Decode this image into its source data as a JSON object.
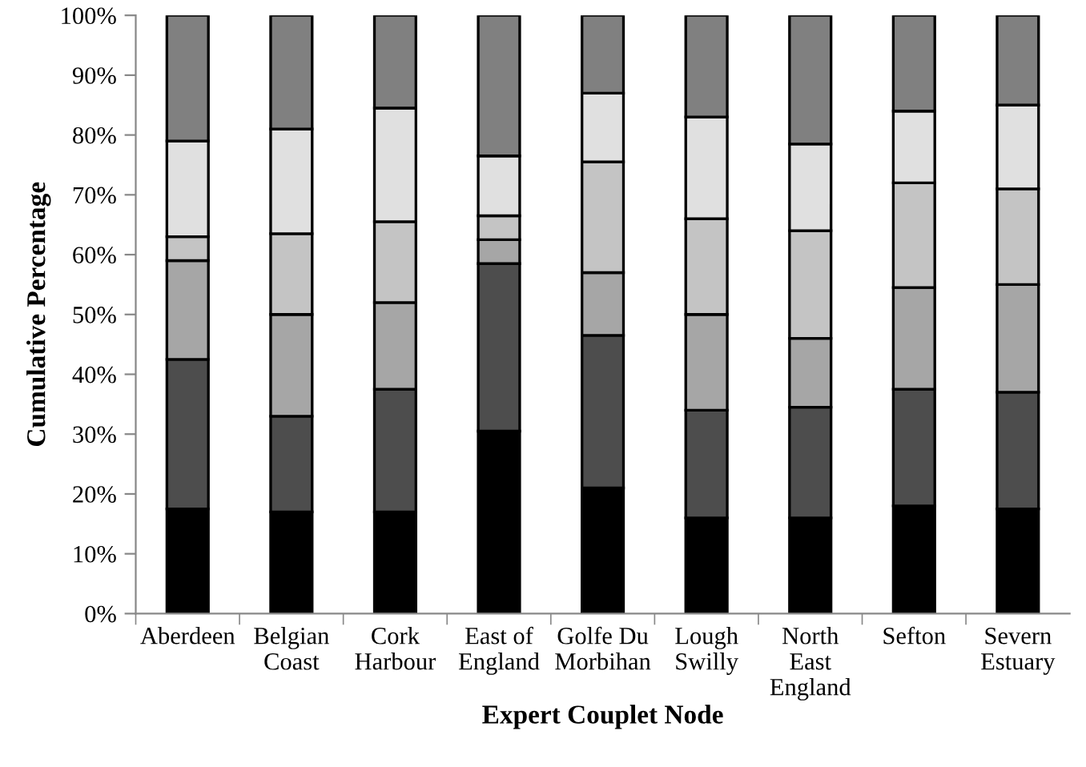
{
  "chart_data": {
    "type": "bar",
    "stacked": true,
    "xlabel": "Expert Couplet Node",
    "ylabel": "Cumulative Percentage",
    "categories": [
      "Aberdeen",
      "Belgian\nCoast",
      "Cork\nHarbour",
      "East of\nEngland",
      "Golfe Du\nMorbihan",
      "Lough\nSwilly",
      "North\nEast\nEngland",
      "Sefton",
      "Severn\nEstuary"
    ],
    "series": [
      {
        "color": "#000000",
        "values": [
          17.5,
          17,
          17,
          30.5,
          21,
          16,
          16,
          18,
          17.5
        ]
      },
      {
        "color": "#4d4d4d",
        "values": [
          25,
          16,
          20.5,
          28,
          25.5,
          18,
          18.5,
          19.5,
          19.5
        ]
      },
      {
        "color": "#a6a6a6",
        "values": [
          16.5,
          17,
          14.5,
          4,
          10.5,
          16,
          11.5,
          17,
          18
        ]
      },
      {
        "color": "#c4c4c4",
        "values": [
          4,
          13.5,
          13.5,
          4,
          18.5,
          16,
          18,
          17.5,
          16
        ]
      },
      {
        "color": "#e0e0e0",
        "values": [
          16,
          17.5,
          19,
          10,
          11.5,
          17,
          14.5,
          12,
          14
        ]
      },
      {
        "color": "#808080",
        "values": [
          21,
          19,
          15.5,
          23.5,
          13,
          17,
          21.5,
          16,
          15
        ]
      }
    ],
    "ylim": [
      0,
      100
    ],
    "yticks": [
      {
        "value": 0,
        "label": "0%"
      },
      {
        "value": 10,
        "label": "10%"
      },
      {
        "value": 20,
        "label": "20%"
      },
      {
        "value": 30,
        "label": "30%"
      },
      {
        "value": 40,
        "label": "40%"
      },
      {
        "value": 50,
        "label": "50%"
      },
      {
        "value": 60,
        "label": "60%"
      },
      {
        "value": 70,
        "label": "70%"
      },
      {
        "value": 80,
        "label": "80%"
      },
      {
        "value": 90,
        "label": "90%"
      },
      {
        "value": 100,
        "label": "100%"
      }
    ],
    "grid": false,
    "legend": false
  }
}
